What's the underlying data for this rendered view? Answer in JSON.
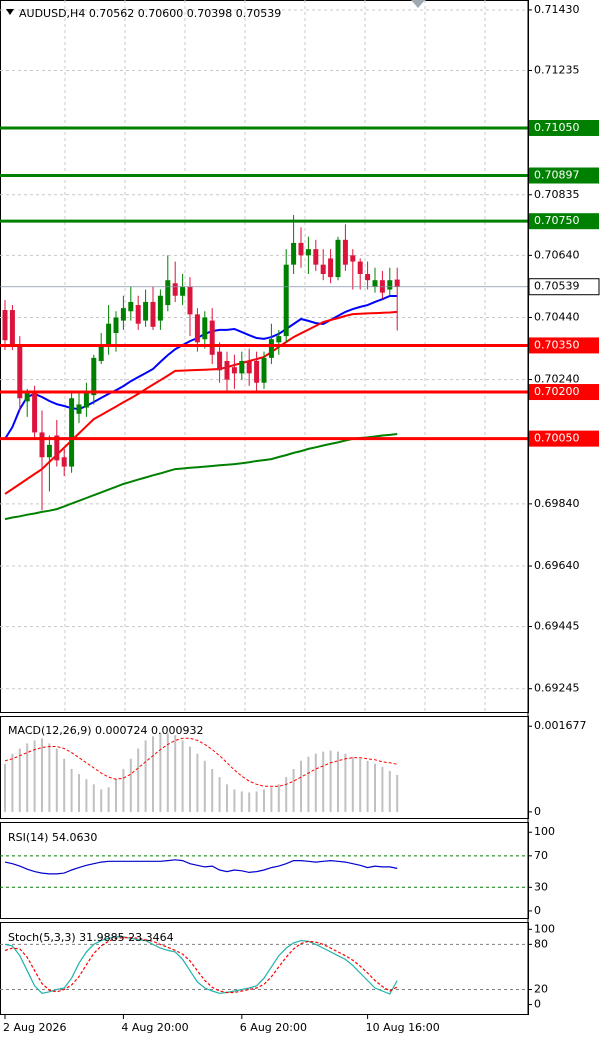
{
  "chart_data": [
    {
      "type": "candlestick",
      "title": "AUDUSD,H4  0.70562 0.70600 0.70398 0.70539",
      "categories": [
        "2 Aug 2026",
        null,
        null,
        null,
        null,
        null,
        null,
        null,
        null,
        null,
        null,
        null,
        null,
        null,
        null,
        null,
        "4 Aug 20:00",
        null,
        null,
        null,
        null,
        null,
        null,
        null,
        null,
        null,
        null,
        null,
        null,
        null,
        null,
        null,
        "6 Aug 20:00",
        null,
        null,
        null,
        null,
        null,
        null,
        null,
        null,
        null,
        null,
        null,
        null,
        null,
        null,
        null,
        null,
        "10 Aug 16:00",
        null,
        null,
        null,
        null
      ],
      "open": [
        0.70464,
        0.70464,
        0.7035,
        0.7017,
        0.702,
        0.7007,
        0.6999,
        0.7006,
        0.6999,
        0.6996,
        0.7013,
        0.7015,
        0.7019,
        0.703,
        0.7035,
        0.7039,
        0.7043,
        0.7046,
        0.7048,
        0.7043,
        0.7049,
        0.7043,
        0.7048,
        0.7055,
        0.7051,
        0.7054,
        0.7045,
        0.7037,
        0.7043,
        0.7033,
        0.703,
        0.7028,
        0.7026,
        0.703,
        0.703,
        0.7023,
        0.7031,
        0.7036,
        0.7038,
        0.7061,
        0.7068,
        0.7064,
        0.7066,
        0.7061,
        0.7063,
        0.7057,
        0.7069,
        0.7064,
        0.7062,
        0.7058,
        0.7054,
        0.7056,
        0.7053,
        0.70562
      ],
      "high": [
        0.70496,
        0.7048,
        0.7038,
        0.7021,
        0.7022,
        0.7014,
        0.7006,
        0.7011,
        0.7002,
        0.702,
        0.702,
        0.7023,
        0.7032,
        0.7039,
        0.7048,
        0.7046,
        0.7051,
        0.7054,
        0.7051,
        0.7053,
        0.7054,
        0.7053,
        0.7064,
        0.7062,
        0.7058,
        0.7057,
        0.7047,
        0.7046,
        0.7047,
        0.7036,
        0.7033,
        0.7032,
        0.7033,
        0.7034,
        0.7033,
        0.7033,
        0.7042,
        0.704,
        0.7066,
        0.7077,
        0.7073,
        0.707,
        0.7069,
        0.7066,
        0.7066,
        0.707,
        0.7074,
        0.7066,
        0.7063,
        0.7062,
        0.706,
        0.7059,
        0.706,
        0.706
      ],
      "low": [
        0.70335,
        0.70335,
        0.7014,
        0.7012,
        0.7005,
        0.6982,
        0.6988,
        0.6996,
        0.6993,
        0.6994,
        0.701,
        0.7012,
        0.7016,
        0.7029,
        0.7032,
        0.7033,
        0.704,
        0.7043,
        0.704,
        0.7041,
        0.704,
        0.704,
        0.7046,
        0.7049,
        0.7048,
        0.7038,
        0.7033,
        0.7034,
        0.7029,
        0.7023,
        0.702,
        0.7021,
        0.7024,
        0.7022,
        0.702,
        0.7021,
        0.7029,
        0.7032,
        0.7036,
        0.7058,
        0.706,
        0.7058,
        0.7059,
        0.7056,
        0.7055,
        0.7056,
        0.7059,
        0.7053,
        0.7053,
        0.7053,
        0.7052,
        0.705,
        0.7051,
        0.70398
      ],
      "close": [
        0.70367,
        0.7035,
        0.7018,
        0.702,
        0.7007,
        0.6999,
        0.7003,
        0.6998,
        0.6996,
        0.7018,
        0.7016,
        0.702,
        0.7031,
        0.7035,
        0.7042,
        0.7044,
        0.7047,
        0.7049,
        0.7042,
        0.7049,
        0.7041,
        0.7051,
        0.7056,
        0.7051,
        0.7054,
        0.7045,
        0.7036,
        0.7044,
        0.7032,
        0.7027,
        0.7024,
        0.7026,
        0.703,
        0.7026,
        0.7023,
        0.7031,
        0.7037,
        0.7038,
        0.7061,
        0.7068,
        0.7064,
        0.7066,
        0.7061,
        0.7058,
        0.7057,
        0.7069,
        0.7061,
        0.7062,
        0.7058,
        0.7056,
        0.7056,
        0.7052,
        0.7056,
        0.70539
      ],
      "up_color": "#008000",
      "down_color": "#dc143c",
      "series": [
        {
          "color": "#0000ff",
          "values": [
            0.70049,
            0.70087,
            0.70145,
            0.70184,
            0.70194,
            0.70184,
            0.70171,
            0.70161,
            0.70155,
            0.70148,
            0.70145,
            0.70155,
            0.70168,
            0.70181,
            0.70194,
            0.70206,
            0.70219,
            0.70235,
            0.70248,
            0.70261,
            0.70274,
            0.70297,
            0.70319,
            0.70338,
            0.70351,
            0.70364,
            0.70374,
            0.70387,
            0.70396,
            0.704,
            0.704,
            0.70403,
            0.70393,
            0.70383,
            0.70374,
            0.70371,
            0.70377,
            0.70387,
            0.70403,
            0.70419,
            0.70435,
            0.70429,
            0.70422,
            0.70419,
            0.70432,
            0.70445,
            0.70458,
            0.70467,
            0.70474,
            0.7048,
            0.7049,
            0.70499,
            0.70509,
            0.70509
          ]
        },
        {
          "color": "#ff0000",
          "values": [
            0.69872,
            0.69888,
            0.69904,
            0.6992,
            0.69936,
            0.69952,
            0.69975,
            0.69998,
            0.70021,
            0.70044,
            0.70067,
            0.7009,
            0.70113,
            0.70126,
            0.7014,
            0.70153,
            0.70167,
            0.7018,
            0.70194,
            0.70209,
            0.70224,
            0.70238,
            0.70253,
            0.70268,
            0.70269,
            0.7027,
            0.70271,
            0.70272,
            0.70273,
            0.70274,
            0.7028,
            0.70287,
            0.70293,
            0.703,
            0.70306,
            0.70313,
            0.70329,
            0.70345,
            0.70361,
            0.70377,
            0.70389,
            0.70401,
            0.70413,
            0.70425,
            0.70432,
            0.70438,
            0.70445,
            0.70451,
            0.70452,
            0.70453,
            0.70454,
            0.70455,
            0.70456,
            0.70458
          ]
        },
        {
          "color": "#008000",
          "values": [
            0.69791,
            0.69796,
            0.698,
            0.69805,
            0.69809,
            0.69814,
            0.69818,
            0.69823,
            0.69832,
            0.69841,
            0.6985,
            0.69859,
            0.69868,
            0.69877,
            0.69886,
            0.69895,
            0.69904,
            0.69911,
            0.69918,
            0.69925,
            0.69932,
            0.69938,
            0.69945,
            0.69952,
            0.69954,
            0.69956,
            0.69958,
            0.6996,
            0.69962,
            0.69964,
            0.69966,
            0.69968,
            0.69971,
            0.69974,
            0.69978,
            0.69981,
            0.69984,
            0.69991,
            0.69997,
            0.70004,
            0.7001,
            0.70017,
            0.70022,
            0.70028,
            0.70033,
            0.70038,
            0.70044,
            0.70049,
            0.70052,
            0.70054,
            0.70057,
            0.7006,
            0.70062,
            0.70065
          ]
        }
      ],
      "levels": [
        {
          "value": 0.7105,
          "label": "0.71050",
          "color": "#008000"
        },
        {
          "value": 0.70897,
          "label": "0.70897",
          "color": "#008000"
        },
        {
          "value": 0.7075,
          "label": "0.70750",
          "color": "#008000"
        },
        {
          "value": 0.7035,
          "label": "0.70350",
          "color": "#ff0000"
        },
        {
          "value": 0.702,
          "label": "0.70200",
          "color": "#ff0000"
        },
        {
          "value": 0.7005,
          "label": "0.70050",
          "color": "#ff0000"
        }
      ],
      "last_price": 0.70539,
      "ylim": [
        0.6917,
        0.71462
      ],
      "yticks": [
        {
          "value": 0.7143,
          "label": "0.71430"
        },
        0.71235,
        {
          "value": 0.70835,
          "label": "0.70835"
        },
        {
          "value": 0.7064,
          "label": "0.70640"
        },
        {
          "value": 0.7044,
          "label": "0.70440"
        },
        {
          "value": 0.7024,
          "label": "0.70240"
        },
        {
          "value": 0.6984,
          "label": "0.69840"
        },
        {
          "value": 0.6964,
          "label": "0.69640"
        },
        0.69445,
        0.69245
      ],
      "grid": true
    },
    {
      "type": "macd",
      "title": "MACD(12,26,9) 0.000724 0.000932",
      "values": [
        0.00094,
        0.00114,
        0.00124,
        0.00134,
        0.0014,
        0.00144,
        0.00134,
        0.00124,
        0.00104,
        0.00084,
        0.00074,
        0.00064,
        0.00054,
        0.00044,
        0.00048,
        0.00064,
        0.00084,
        0.00104,
        0.00124,
        0.0014,
        0.00148,
        0.00154,
        0.00154,
        0.0015,
        0.0014,
        0.00128,
        0.00114,
        0.001,
        0.00084,
        0.00068,
        0.00054,
        0.00044,
        0.0004,
        0.00038,
        0.0004,
        0.00044,
        0.00048,
        0.00054,
        0.00068,
        0.00084,
        0.001,
        0.00108,
        0.00114,
        0.00118,
        0.0012,
        0.00118,
        0.00114,
        0.00108,
        0.00104,
        0.001,
        0.00094,
        0.00088,
        0.0008,
        0.000724
      ],
      "color": "#c0c0c0",
      "series": [
        {
          "color": "#ff0000",
          "style": "dashed",
          "values": [
            0.001,
            0.00104,
            0.0011,
            0.00116,
            0.00122,
            0.00126,
            0.00128,
            0.00128,
            0.00124,
            0.00116,
            0.00106,
            0.00096,
            0.00086,
            0.00076,
            0.00068,
            0.00064,
            0.00066,
            0.00074,
            0.00086,
            0.00098,
            0.0011,
            0.00122,
            0.00132,
            0.0014,
            0.00144,
            0.00144,
            0.0014,
            0.00132,
            0.00122,
            0.0011,
            0.00096,
            0.00082,
            0.0007,
            0.0006,
            0.00054,
            0.0005,
            0.0005,
            0.0005,
            0.00054,
            0.0006,
            0.00068,
            0.00076,
            0.00084,
            0.0009,
            0.00096,
            0.001,
            0.00104,
            0.00106,
            0.00106,
            0.00104,
            0.00102,
            0.00098,
            0.00096,
            0.000932
          ]
        }
      ],
      "ylim": [
        -0.00012,
        0.001877
      ],
      "yticks": [
        0.001677,
        0
      ]
    },
    {
      "type": "line",
      "title": "RSI(14) 54.0630",
      "series": [
        {
          "color": "#0000cd",
          "style": "solid",
          "values": [
            62,
            60,
            57,
            53,
            50,
            48,
            47,
            47,
            48,
            52,
            55,
            58,
            60,
            62,
            63,
            63,
            63,
            63,
            63,
            63,
            63,
            63,
            64,
            65,
            64,
            60,
            58,
            56,
            57,
            52,
            50,
            52,
            51,
            49,
            50,
            52,
            55,
            57,
            60,
            64,
            64,
            63,
            62,
            63,
            64,
            63,
            62,
            60,
            58,
            55,
            57,
            56,
            56,
            54.063
          ]
        }
      ],
      "levels": [
        70,
        30
      ],
      "level_color": "#008000",
      "ylim": [
        -9,
        113
      ],
      "yticks": [
        100,
        70,
        30,
        0
      ]
    },
    {
      "type": "line",
      "title": "Stoch(5,3,3) 31.9885 23.3464",
      "series": [
        {
          "color": "#20b2aa",
          "style": "solid",
          "values": [
            80,
            78,
            65,
            45,
            25,
            15,
            17,
            20,
            22,
            35,
            55,
            70,
            80,
            85,
            88,
            90,
            90,
            88,
            86,
            85,
            80,
            75,
            72,
            70,
            60,
            45,
            30,
            22,
            18,
            15,
            16,
            18,
            20,
            22,
            25,
            35,
            50,
            65,
            75,
            82,
            85,
            84,
            80,
            75,
            70,
            65,
            60,
            52,
            42,
            32,
            22,
            18,
            14,
            31.9885
          ]
        },
        {
          "color": "#ff0000",
          "style": "dashed",
          "values": [
            72,
            75,
            74,
            63,
            45,
            28,
            19,
            17,
            20,
            26,
            37,
            53,
            68,
            78,
            84,
            88,
            89,
            89,
            88,
            86,
            84,
            80,
            76,
            72,
            67,
            58,
            45,
            32,
            23,
            18,
            16,
            16,
            18,
            20,
            22,
            27,
            37,
            50,
            63,
            74,
            81,
            84,
            83,
            80,
            75,
            70,
            65,
            59,
            51,
            42,
            32,
            24,
            18,
            23.3464
          ]
        }
      ],
      "levels": [
        80,
        20
      ],
      "level_color": "#808080",
      "ylim": [
        -12.5,
        109.7
      ],
      "yticks": [
        100,
        80,
        20,
        0
      ]
    }
  ]
}
